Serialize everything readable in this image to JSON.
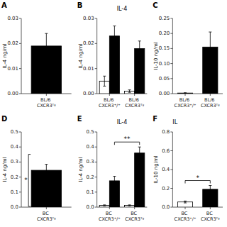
{
  "chart_data": [
    {
      "type": "bar",
      "label": "A",
      "ylabel": "IL-4 ng/ml",
      "ylim": [
        0,
        0.03
      ],
      "yticks": [
        {
          "value": 0,
          "label": "0.00"
        },
        0.01,
        0.02,
        0.03
      ],
      "categories": [
        "BL/6 CXCR3ᵀᵍ"
      ],
      "series": [
        {
          "colors": [
            "black"
          ],
          "values": [
            0.019
          ],
          "errors": [
            0.005
          ]
        }
      ]
    },
    {
      "type": "bar",
      "label": "B",
      "title": "IL-4",
      "ylabel": "IL-4 ng/ml",
      "ylim": [
        0,
        0.03
      ],
      "yticks": [
        {
          "value": 0,
          "label": "0.00"
        },
        0.01,
        0.02,
        0.03
      ],
      "categories": [
        "BL/6 CXCR3⁺/⁺",
        "BL/6 CXCR3ᵀᵍ"
      ],
      "series": [
        {
          "color": "white",
          "values": [
            0.005,
            0.001
          ],
          "errors": [
            0.002,
            0.0005
          ]
        },
        {
          "color": "black",
          "values": [
            0.023,
            0.018
          ],
          "errors": [
            0.004,
            0.003
          ]
        }
      ]
    },
    {
      "type": "bar",
      "label": "C",
      "ylabel": "IL-10 ng/ml",
      "ylim": [
        0,
        0.25
      ],
      "yticks": [
        {
          "value": 0,
          "label": "0.00"
        },
        0.05,
        {
          "value": 0.1,
          "label": "0.10"
        },
        0.15,
        {
          "value": 0.2,
          "label": "0.20"
        },
        0.25
      ],
      "categories": [
        "BL/6 CXCR3⁺/⁺",
        "BL/6 CXCR3ᵀᵍ"
      ],
      "series": [
        {
          "colors": [
            "white",
            "black"
          ],
          "values": [
            0.002,
            0.155
          ],
          "errors": [
            0.001,
            0.05
          ]
        }
      ]
    },
    {
      "type": "bar",
      "label": "D",
      "ylabel": "IL-4 ng/ml",
      "ylim": [
        0,
        0.5
      ],
      "yticks": [
        {
          "value": 0,
          "label": "0.0"
        },
        0.1,
        0.2,
        0.3,
        0.4,
        0.5
      ],
      "categories": [
        "BC CXCR3ᵀᵍ"
      ],
      "series": [
        {
          "colors": [
            "black"
          ],
          "values": [
            0.245
          ],
          "errors": [
            0.04
          ]
        }
      ],
      "annotations": [
        {
          "text": "*",
          "bars": [
            [
              0,
              0
            ]
          ]
        }
      ]
    },
    {
      "type": "bar",
      "label": "E",
      "title": "IL-4",
      "ylabel": "IL-4 ng/ml",
      "ylim": [
        0,
        0.5
      ],
      "yticks": [
        {
          "value": 0,
          "label": "0.0"
        },
        0.1,
        0.2,
        0.3,
        0.4,
        0.5
      ],
      "categories": [
        "BC CXCR3⁺/⁺",
        "BC CXCR3ᵀᵍ"
      ],
      "series": [
        {
          "color": "white",
          "values": [
            0.012,
            0.012
          ],
          "errors": [
            0.003,
            0.003
          ]
        },
        {
          "color": "black",
          "values": [
            0.175,
            0.36
          ],
          "errors": [
            0.03,
            0.04
          ]
        }
      ],
      "annotations": [
        {
          "text": "**",
          "bars": [
            [
              0,
              1
            ],
            [
              1,
              1
            ]
          ]
        }
      ]
    },
    {
      "type": "bar",
      "label": "F",
      "title": "IL",
      "ylabel": "IL-10 ng/ml",
      "ylim": [
        0,
        0.8
      ],
      "yticks": [
        {
          "value": 0,
          "label": "0.0"
        },
        0.2,
        0.4,
        0.6,
        0.8
      ],
      "categories": [
        "BC CXCR3⁺/⁺",
        "BC CXCR3ᵀᵍ"
      ],
      "series": [
        {
          "colors": [
            "white",
            "black"
          ],
          "values": [
            0.055,
            0.19
          ],
          "errors": [
            0.01,
            0.04
          ]
        }
      ],
      "annotations": [
        {
          "text": "*",
          "bars": [
            [
              0,
              0
            ],
            [
              1,
              0
            ]
          ]
        }
      ]
    }
  ]
}
